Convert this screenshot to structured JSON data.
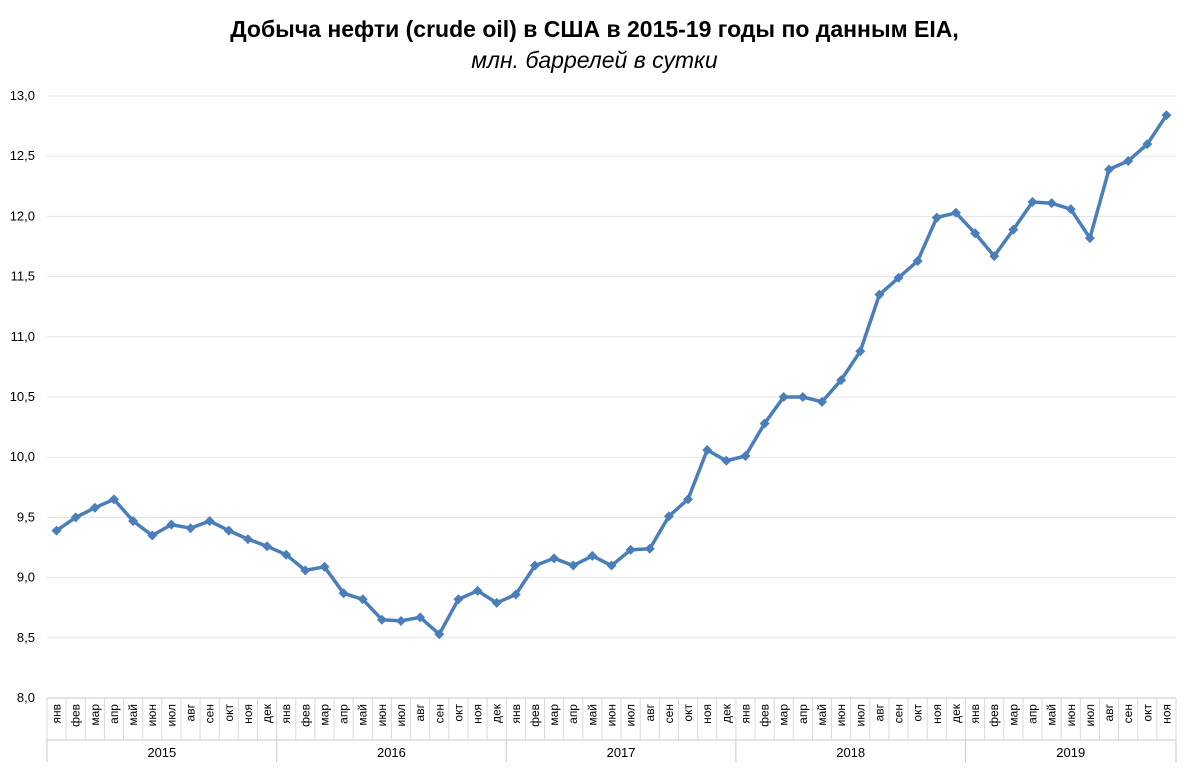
{
  "chart_data": {
    "type": "line",
    "title": "Добыча нефти (crude oil) в США в 2015-19 годы по данным EIA,",
    "subtitle": "млн. баррелей в сутки",
    "ylim": [
      8.0,
      13.0
    ],
    "yticks": [
      "8,0",
      "8,5",
      "9,0",
      "9,5",
      "10,0",
      "10,5",
      "11,0",
      "11,5",
      "12,0",
      "12,5",
      "13,0"
    ],
    "ytick_values": [
      8.0,
      8.5,
      9.0,
      9.5,
      10.0,
      10.5,
      11.0,
      11.5,
      12.0,
      12.5,
      13.0
    ],
    "grid": true,
    "legend": "none",
    "color": "#4a7ebb",
    "years": [
      {
        "label": "2015",
        "months": 12
      },
      {
        "label": "2016",
        "months": 12
      },
      {
        "label": "2017",
        "months": 12
      },
      {
        "label": "2018",
        "months": 12
      },
      {
        "label": "2019",
        "months": 11
      }
    ],
    "months": [
      "янв",
      "фев",
      "мар",
      "апр",
      "май",
      "июн",
      "июл",
      "авг",
      "сен",
      "окт",
      "ноя",
      "дек"
    ],
    "values": [
      9.39,
      9.5,
      9.58,
      9.65,
      9.47,
      9.35,
      9.44,
      9.41,
      9.47,
      9.39,
      9.32,
      9.26,
      9.19,
      9.06,
      9.09,
      8.87,
      8.82,
      8.65,
      8.64,
      8.67,
      8.53,
      8.82,
      8.89,
      8.79,
      8.86,
      9.1,
      9.16,
      9.1,
      9.18,
      9.1,
      9.23,
      9.24,
      9.51,
      9.65,
      10.06,
      9.97,
      10.01,
      10.28,
      10.5,
      10.5,
      10.46,
      10.64,
      10.88,
      11.35,
      11.49,
      11.63,
      11.99,
      12.03,
      11.86,
      11.67,
      11.89,
      12.12,
      12.11,
      12.06,
      11.82,
      12.39,
      12.46,
      12.6,
      12.84
    ]
  }
}
